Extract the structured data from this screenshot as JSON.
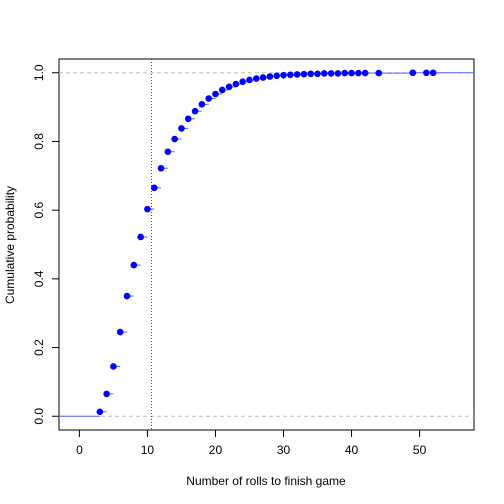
{
  "chart_data": {
    "type": "scatter",
    "title": "",
    "xlabel": "Number of rolls to finish game",
    "ylabel": "Cumulative probability",
    "xlim": [
      -3,
      58
    ],
    "ylim": [
      -0.04,
      1.04
    ],
    "x_ticks": [
      0,
      10,
      20,
      30,
      40,
      50
    ],
    "y_ticks": [
      0.0,
      0.2,
      0.4,
      0.6,
      0.8,
      1.0
    ],
    "x_tick_labels": [
      "0",
      "10",
      "20",
      "30",
      "40",
      "50"
    ],
    "y_tick_labels": [
      "0.0",
      "0.2",
      "0.4",
      "0.6",
      "0.8",
      "1.0"
    ],
    "hlines": [
      0,
      1
    ],
    "vline": 10.6,
    "series": [
      {
        "x": [
          3,
          4,
          5,
          6,
          7,
          8,
          9,
          10,
          11,
          12,
          13,
          14,
          15,
          16,
          17,
          18,
          19,
          20,
          21,
          22,
          23,
          24,
          25,
          26,
          27,
          28,
          29,
          30,
          31,
          32,
          33,
          34,
          35,
          36,
          37,
          38,
          39,
          40,
          41,
          42,
          44,
          49,
          51,
          52
        ],
        "y": [
          0.013,
          0.065,
          0.145,
          0.245,
          0.35,
          0.44,
          0.522,
          0.603,
          0.665,
          0.722,
          0.77,
          0.807,
          0.838,
          0.866,
          0.888,
          0.908,
          0.925,
          0.938,
          0.95,
          0.959,
          0.967,
          0.974,
          0.979,
          0.983,
          0.986,
          0.989,
          0.991,
          0.993,
          0.994,
          0.995,
          0.996,
          0.997,
          0.997,
          0.998,
          0.998,
          0.998,
          0.999,
          0.999,
          0.999,
          0.999,
          0.999,
          1.0,
          1.0,
          1.0
        ]
      }
    ],
    "colors": {
      "points": "#0000ff",
      "step": "#5566ff",
      "hline": "#bebebe",
      "vline": "#ff0000",
      "axes": "#000000"
    }
  }
}
